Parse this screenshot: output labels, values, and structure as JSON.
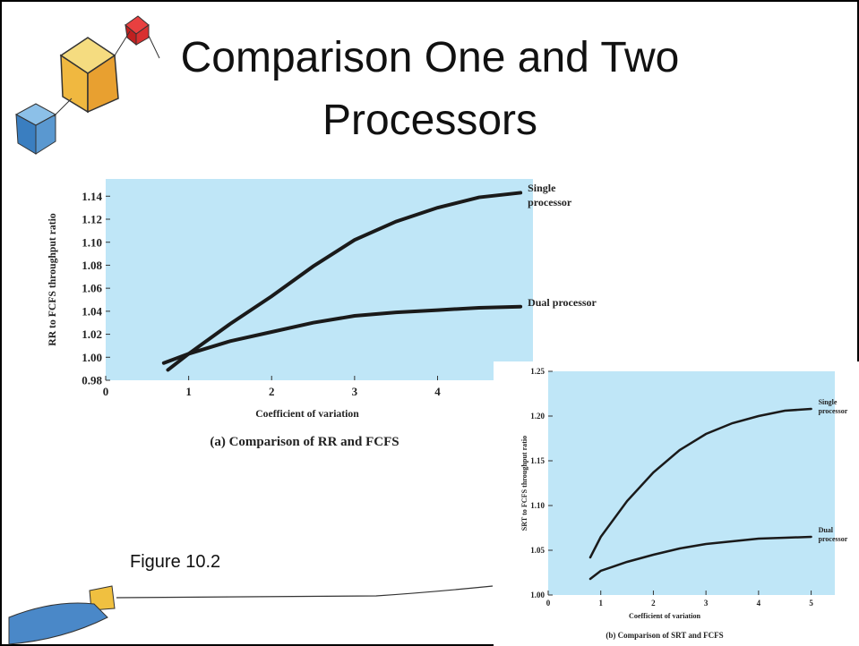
{
  "slide_title": "Comparison One and Two Processors",
  "figure_label": "Figure 10.2",
  "chart_data": [
    {
      "type": "line",
      "caption": "(a) Comparison of RR and FCFS",
      "x_label": "Coefficient of variation",
      "y_label": "RR to FCFS throughput ratio",
      "xlim": [
        0,
        5.15
      ],
      "ylim": [
        0.98,
        1.155
      ],
      "xticks": [
        0,
        1,
        2,
        3,
        4
      ],
      "yticks": [
        0.98,
        {
          "value": 1,
          "label": "1.00"
        },
        1.02,
        1.04,
        1.06,
        1.08,
        {
          "value": 1.1,
          "label": "1.10"
        },
        1.12,
        1.14
      ],
      "background": "#bfe6f7",
      "series": [
        {
          "name": "Single processor",
          "color": "#1a1a1a",
          "x": [
            0.75,
            1,
            1.5,
            2,
            2.5,
            3,
            3.5,
            4,
            4.5,
            5
          ],
          "values": [
            0.989,
            1.003,
            1.029,
            1.053,
            1.079,
            1.102,
            1.118,
            1.13,
            1.139,
            1.143
          ]
        },
        {
          "name": "Dual processor",
          "color": "#1a1a1a",
          "x": [
            0.7,
            1,
            1.5,
            2,
            2.5,
            3,
            3.5,
            4,
            4.5,
            5
          ],
          "values": [
            0.995,
            1.003,
            1.014,
            1.022,
            1.03,
            1.036,
            1.039,
            1.041,
            1.043,
            1.044
          ]
        }
      ]
    },
    {
      "type": "line",
      "caption": "(b) Comparison of SRT and FCFS",
      "x_label": "Coefficient of variation",
      "y_label": "SRT to FCFS throughput ratio",
      "xlim": [
        0,
        5.45
      ],
      "ylim": [
        1,
        1.25
      ],
      "xticks": [
        0,
        1,
        2,
        3,
        4,
        5
      ],
      "yticks": [
        {
          "value": 1,
          "label": "1.00"
        },
        1.05,
        {
          "value": 1.1,
          "label": "1.10"
        },
        1.15,
        {
          "value": 1.2,
          "label": "1.20"
        },
        1.25
      ],
      "background": "#bfe6f7",
      "series": [
        {
          "name": "Single processor",
          "color": "#1a1a1a",
          "x": [
            0.8,
            1,
            1.5,
            2,
            2.5,
            3,
            3.5,
            4,
            4.5,
            5
          ],
          "values": [
            1.042,
            1.065,
            1.105,
            1.137,
            1.162,
            1.18,
            1.192,
            1.2,
            1.206,
            1.208
          ]
        },
        {
          "name": "Dual processor",
          "color": "#1a1a1a",
          "x": [
            0.8,
            1,
            1.5,
            2,
            2.5,
            3,
            3.5,
            4,
            4.5,
            5
          ],
          "values": [
            1.018,
            1.027,
            1.037,
            1.045,
            1.052,
            1.057,
            1.06,
            1.063,
            1.064,
            1.065
          ]
        }
      ]
    }
  ]
}
